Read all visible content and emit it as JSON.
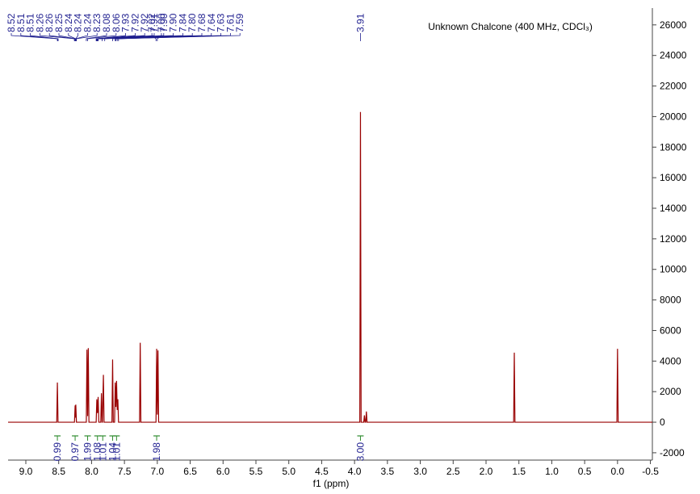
{
  "chart_data": {
    "type": "line",
    "title": "Unknown Chalcone (400 MHz, CDCl₃)",
    "x_label": "f1 (ppm)",
    "x": [
      9.27,
      8.53,
      8.52,
      8.51,
      8.26,
      8.25,
      8.245,
      8.24,
      8.23,
      8.08,
      8.07,
      8.06,
      8.05,
      8.04,
      7.93,
      7.92,
      7.91,
      7.9,
      7.89,
      7.86,
      7.85,
      7.84,
      7.835,
      7.82,
      7.81,
      7.69,
      7.68,
      7.67,
      7.65,
      7.64,
      7.63,
      7.62,
      7.61,
      7.6,
      7.59,
      7.27,
      7.26,
      7.25,
      7.02,
      7.01,
      7.0,
      6.99,
      6.98,
      3.92,
      3.91,
      3.9,
      3.86,
      3.85,
      3.84,
      3.83,
      3.82,
      3.81,
      1.58,
      1.57,
      1.56,
      0.01,
      0,
      -0.01,
      -0.53
    ],
    "values": [
      0,
      0,
      2600,
      0,
      0,
      1100,
      300,
      1150,
      0,
      0,
      4750,
      400,
      4850,
      0,
      0,
      1500,
      600,
      1650,
      0,
      0,
      1900,
      0,
      0,
      3100,
      0,
      0,
      4100,
      0,
      0,
      2600,
      1000,
      2700,
      800,
      1500,
      0,
      0,
      5200,
      0,
      0,
      4800,
      500,
      4700,
      0,
      0,
      20300,
      0,
      0,
      450,
      0,
      0,
      700,
      0,
      0,
      4550,
      0,
      0,
      4800,
      0,
      0
    ],
    "color": "#990000",
    "xlim": [
      9.27,
      -0.53
    ],
    "ylim": [
      -2480,
      27100
    ],
    "xticks": [
      {
        "value": 9,
        "label": "9.0"
      },
      8.5,
      {
        "value": 8,
        "label": "8.0"
      },
      7.5,
      {
        "value": 7,
        "label": "7.0"
      },
      6.5,
      {
        "value": 6,
        "label": "6.0"
      },
      5.5,
      {
        "value": 5,
        "label": "5.0"
      },
      4.5,
      {
        "value": 4,
        "label": "4.0"
      },
      3.5,
      {
        "value": 3,
        "label": "3.0"
      },
      2.5,
      {
        "value": 2,
        "label": "2.0"
      },
      1.5,
      {
        "value": 1,
        "label": "1.0"
      },
      0.5,
      {
        "value": 0,
        "label": "0.0"
      },
      -0.5
    ],
    "yticks": [
      -2000,
      0,
      2000,
      4000,
      6000,
      8000,
      10000,
      12000,
      14000,
      16000,
      18000,
      20000,
      22000,
      24000,
      26000
    ],
    "peak_labels": [
      8.52,
      8.51,
      8.51,
      8.26,
      8.26,
      8.25,
      8.24,
      8.24,
      8.24,
      8.23,
      8.08,
      8.06,
      7.93,
      7.92,
      7.92,
      7.91,
      {
        "value": 7.9,
        "label": "7.90"
      },
      {
        "value": 7.9,
        "label": "7.90"
      },
      7.84,
      {
        "value": 7.8,
        "label": "7.80"
      },
      7.68,
      7.64,
      7.63,
      7.61,
      7.59,
      7.02,
      {
        "value": 7,
        "label": "7.00"
      },
      3.91
    ],
    "integrals": [
      {
        "ppm": 8.52,
        "value": 0.99
      },
      {
        "ppm": 8.25,
        "value": 0.97
      },
      {
        "ppm": 8.06,
        "value": 1.99
      },
      {
        "ppm": 7.91,
        "value": 1.08
      },
      {
        "ppm": 7.83,
        "value": 1.01
      },
      {
        "ppm": 7.68,
        "value": 1.04
      },
      {
        "ppm": 7.62,
        "value": 1.01
      },
      {
        "ppm": 7.01,
        "value": 1.98
      },
      {
        "ppm": 3.91,
        "value": 3,
        "label": "3.00"
      }
    ],
    "label_color": "#1f1f8f",
    "integral_color": "#2e8b2e"
  }
}
